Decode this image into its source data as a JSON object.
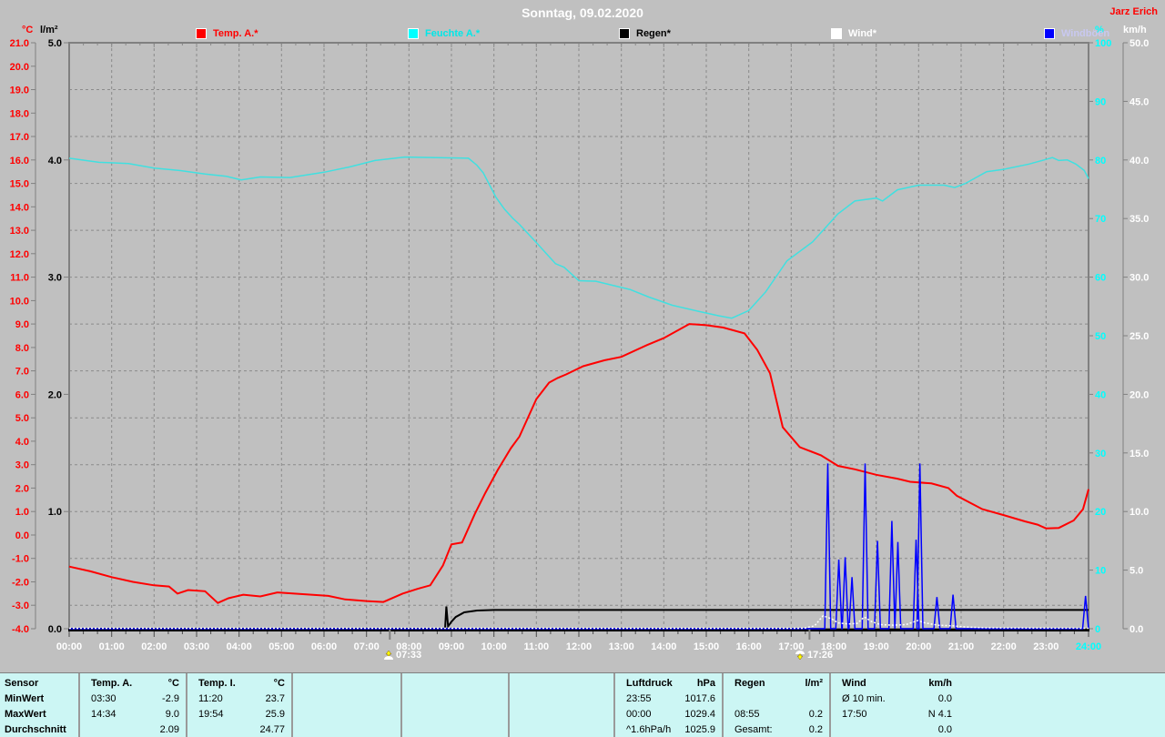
{
  "window": {
    "title": "Sonntag, 09.02.2020",
    "author": "Jarz Erich"
  },
  "axis_headers": {
    "temp": "°C",
    "rain": "l/m²",
    "humidity": "%",
    "wind": "km/h"
  },
  "legend": [
    {
      "label": "Temp. A.*",
      "swatch": "#ff0000",
      "text_color": "#ff0000"
    },
    {
      "label": "Feuchte A.*",
      "swatch": "#00ffff",
      "text_color": "#00e8e8"
    },
    {
      "label": "Regen*",
      "swatch": "#000000",
      "text_color": "#000000"
    },
    {
      "label": "Wind*",
      "swatch": "#ffffff",
      "text_color": "#ffffff"
    },
    {
      "label": "Windböen",
      "swatch": "#0000ff",
      "text_color": "#c8c8f0"
    }
  ],
  "markers": {
    "sunrise_label": "07:33",
    "sunrise_hour": 7.55,
    "sunset_label": "17:26",
    "sunset_hour": 17.43
  },
  "chart_data": {
    "type": "line",
    "title": "Sonntag, 09.02.2020",
    "x_axis": {
      "range_hours": [
        0,
        24
      ],
      "tick_labels": [
        "00:00",
        "01:00",
        "02:00",
        "03:00",
        "04:00",
        "05:00",
        "06:00",
        "07:00",
        "08:00",
        "09:00",
        "10:00",
        "11:00",
        "12:00",
        "13:00",
        "14:00",
        "15:00",
        "16:00",
        "17:00",
        "18:00",
        "19:00",
        "20:00",
        "21:00",
        "22:00",
        "23:00",
        "24:00"
      ],
      "label_color": "#ffffff",
      "last_label_color": "#00ffff"
    },
    "y_axes": [
      {
        "id": "temp",
        "unit": "°C",
        "side": "left",
        "min": -4,
        "max": 21,
        "step": 1,
        "decimals": 1,
        "color": "#ff0000"
      },
      {
        "id": "rain",
        "unit": "l/m²",
        "side": "left",
        "min": 0,
        "max": 5,
        "step": 1,
        "decimals": 1,
        "color": "#000000"
      },
      {
        "id": "humidity",
        "unit": "%",
        "side": "right",
        "min": 0,
        "max": 100,
        "step": 10,
        "decimals": 0,
        "color": "#00ffff"
      },
      {
        "id": "wind",
        "unit": "km/h",
        "side": "right",
        "min": 0,
        "max": 50,
        "step": 5,
        "decimals": 1,
        "color": "#ffffff"
      }
    ],
    "grid": {
      "color": "#8a8a8a",
      "style": "dashed",
      "x_every_hours": 1,
      "y_divisions": 12.5
    },
    "series": [
      {
        "name": "Feuchte A.*",
        "axis": "humidity",
        "color": "#40e0e0",
        "width": 1.5,
        "points": [
          [
            0,
            80.3
          ],
          [
            0.7,
            79.6
          ],
          [
            1.4,
            79.4
          ],
          [
            2,
            78.6
          ],
          [
            2.6,
            78.2
          ],
          [
            3.2,
            77.6
          ],
          [
            3.7,
            77.2
          ],
          [
            4.05,
            76.6
          ],
          [
            4.5,
            77.1
          ],
          [
            5.2,
            77
          ],
          [
            6,
            77.9
          ],
          [
            6.6,
            78.8
          ],
          [
            7.2,
            79.9
          ],
          [
            7.9,
            80.5
          ],
          [
            9.4,
            80.3
          ],
          [
            9.6,
            79.1
          ],
          [
            9.75,
            77.8
          ],
          [
            9.9,
            75.7
          ],
          [
            10.05,
            73.6
          ],
          [
            10.25,
            71.6
          ],
          [
            10.45,
            70
          ],
          [
            10.6,
            69
          ],
          [
            11,
            65.9
          ],
          [
            11.45,
            62.3
          ],
          [
            11.65,
            61.7
          ],
          [
            12,
            59.4
          ],
          [
            12.4,
            59.3
          ],
          [
            12.8,
            58.6
          ],
          [
            13.2,
            57.9
          ],
          [
            13.65,
            56.6
          ],
          [
            14.2,
            55.2
          ],
          [
            14.8,
            54.2
          ],
          [
            15.3,
            53.4
          ],
          [
            15.6,
            53
          ],
          [
            16,
            54.3
          ],
          [
            16.4,
            57.5
          ],
          [
            16.9,
            62.8
          ],
          [
            17.5,
            66
          ],
          [
            18.1,
            70.8
          ],
          [
            18.5,
            73
          ],
          [
            19,
            73.5
          ],
          [
            19.15,
            73
          ],
          [
            19.5,
            74.9
          ],
          [
            20,
            75.7
          ],
          [
            20.6,
            75.7
          ],
          [
            20.85,
            75.3
          ],
          [
            21.1,
            76
          ],
          [
            21.6,
            78
          ],
          [
            22,
            78.4
          ],
          [
            22.6,
            79.3
          ],
          [
            23,
            80.1
          ],
          [
            23.15,
            80.4
          ],
          [
            23.3,
            79.9
          ],
          [
            23.5,
            80
          ],
          [
            23.7,
            79.3
          ],
          [
            23.9,
            78.2
          ],
          [
            24,
            76.8
          ]
        ]
      },
      {
        "name": "Temp. A.*",
        "axis": "temp",
        "color": "#ff0000",
        "width": 2,
        "points": [
          [
            0,
            -1.35
          ],
          [
            0.5,
            -1.55
          ],
          [
            1,
            -1.8
          ],
          [
            1.5,
            -2
          ],
          [
            2,
            -2.15
          ],
          [
            2.35,
            -2.2
          ],
          [
            2.55,
            -2.5
          ],
          [
            2.8,
            -2.35
          ],
          [
            3.2,
            -2.4
          ],
          [
            3.5,
            -2.9
          ],
          [
            3.75,
            -2.7
          ],
          [
            4.1,
            -2.55
          ],
          [
            4.5,
            -2.62
          ],
          [
            4.9,
            -2.45
          ],
          [
            5.3,
            -2.5
          ],
          [
            5.7,
            -2.55
          ],
          [
            6.1,
            -2.6
          ],
          [
            6.5,
            -2.75
          ],
          [
            7,
            -2.82
          ],
          [
            7.4,
            -2.86
          ],
          [
            7.85,
            -2.5
          ],
          [
            8.2,
            -2.3
          ],
          [
            8.5,
            -2.15
          ],
          [
            8.8,
            -1.3
          ],
          [
            9,
            -0.4
          ],
          [
            9.25,
            -0.32
          ],
          [
            9.55,
            0.9
          ],
          [
            9.8,
            1.8
          ],
          [
            10.1,
            2.8
          ],
          [
            10.4,
            3.7
          ],
          [
            10.6,
            4.2
          ],
          [
            11,
            5.8
          ],
          [
            11.3,
            6.5
          ],
          [
            11.5,
            6.7
          ],
          [
            11.7,
            6.85
          ],
          [
            12.1,
            7.2
          ],
          [
            12.6,
            7.45
          ],
          [
            13,
            7.6
          ],
          [
            13.6,
            8.1
          ],
          [
            14,
            8.4
          ],
          [
            14.6,
            9
          ],
          [
            15,
            8.95
          ],
          [
            15.4,
            8.85
          ],
          [
            15.9,
            8.6
          ],
          [
            16.2,
            7.9
          ],
          [
            16.5,
            6.9
          ],
          [
            16.8,
            4.6
          ],
          [
            17.2,
            3.75
          ],
          [
            17.7,
            3.4
          ],
          [
            18.1,
            2.95
          ],
          [
            18.5,
            2.8
          ],
          [
            19,
            2.57
          ],
          [
            19.5,
            2.4
          ],
          [
            19.8,
            2.27
          ],
          [
            20.3,
            2.2
          ],
          [
            20.7,
            2
          ],
          [
            20.9,
            1.67
          ],
          [
            21.5,
            1.1
          ],
          [
            22,
            0.85
          ],
          [
            22.5,
            0.58
          ],
          [
            22.8,
            0.44
          ],
          [
            23,
            0.28
          ],
          [
            23.3,
            0.3
          ],
          [
            23.65,
            0.62
          ],
          [
            23.87,
            1.1
          ],
          [
            24,
            1.95
          ]
        ]
      },
      {
        "name": "Regen*",
        "axis": "rain",
        "color": "#000000",
        "width": 2,
        "points": [
          [
            0,
            0
          ],
          [
            8.85,
            0
          ],
          [
            8.88,
            0.19
          ],
          [
            8.92,
            0.02
          ],
          [
            9,
            0.06
          ],
          [
            9.1,
            0.1
          ],
          [
            9.3,
            0.14
          ],
          [
            9.6,
            0.155
          ],
          [
            10,
            0.16
          ],
          [
            24,
            0.16
          ]
        ]
      },
      {
        "name": "Windböen",
        "axis": "wind",
        "color": "#0000ff",
        "width": 1.5,
        "baseline": 0,
        "spike_halfwidth_hours": 0.07,
        "spikes": [
          [
            17.86,
            14.1
          ],
          [
            18.12,
            5.9
          ],
          [
            18.27,
            6.1
          ],
          [
            18.43,
            4.4
          ],
          [
            18.74,
            14.1
          ],
          [
            19.03,
            7.5
          ],
          [
            19.37,
            9.2
          ],
          [
            19.51,
            7.4
          ],
          [
            19.94,
            7.6
          ],
          [
            20.03,
            14.1
          ],
          [
            20.43,
            2.7
          ],
          [
            20.81,
            2.9
          ],
          [
            23.93,
            2.8
          ]
        ]
      },
      {
        "name": "Wind*",
        "axis": "wind",
        "color": "#ffffff",
        "width": 1.5,
        "dash": "2 2",
        "points": [
          [
            0,
            0.04
          ],
          [
            17.3,
            0.04
          ],
          [
            17.55,
            0.25
          ],
          [
            17.75,
            1.1
          ],
          [
            17.95,
            0.85
          ],
          [
            18.1,
            0.5
          ],
          [
            18.35,
            0.4
          ],
          [
            18.55,
            0.45
          ],
          [
            18.72,
            1
          ],
          [
            18.9,
            0.6
          ],
          [
            19.1,
            0.35
          ],
          [
            19.4,
            0.3
          ],
          [
            19.7,
            0.35
          ],
          [
            19.98,
            0.7
          ],
          [
            20.15,
            0.5
          ],
          [
            20.45,
            0.3
          ],
          [
            20.8,
            0.25
          ],
          [
            21.1,
            0.15
          ],
          [
            21.6,
            0.08
          ],
          [
            24,
            0.04
          ]
        ]
      }
    ]
  },
  "stats": {
    "row_labels": [
      "Sensor",
      "MinWert",
      "MaxWert",
      "Durchschnitt"
    ],
    "columns": [
      {
        "name": "Temp. A.",
        "unit": "°C",
        "rows": [
          [
            "03:30",
            "-2.9"
          ],
          [
            "14:34",
            "9.0"
          ],
          [
            "",
            "2.09"
          ]
        ]
      },
      {
        "name": "Temp. I.",
        "unit": "°C",
        "rows": [
          [
            "11:20",
            "23.7"
          ],
          [
            "19:54",
            "25.9"
          ],
          [
            "",
            "24.77"
          ]
        ]
      },
      {
        "name": "",
        "unit": "",
        "rows": [
          [
            "",
            ""
          ],
          [
            "",
            ""
          ],
          [
            "",
            ""
          ]
        ]
      },
      {
        "name": "",
        "unit": "",
        "rows": [
          [
            "",
            ""
          ],
          [
            "",
            ""
          ],
          [
            "",
            ""
          ]
        ]
      },
      {
        "name": "",
        "unit": "",
        "rows": [
          [
            "",
            ""
          ],
          [
            "",
            ""
          ],
          [
            "",
            ""
          ]
        ]
      },
      {
        "name": "Luftdruck",
        "unit": "hPa",
        "rows": [
          [
            "23:55",
            "1017.6"
          ],
          [
            "00:00",
            "1029.4"
          ],
          [
            "^1.6hPa/h",
            "1025.9"
          ]
        ]
      },
      {
        "name": "Regen",
        "unit": "l/m²",
        "rows": [
          [
            "",
            ""
          ],
          [
            "08:55",
            "0.2"
          ],
          [
            "Gesamt:",
            "0.2"
          ]
        ]
      },
      {
        "name": "Wind",
        "unit": "km/h",
        "rows": [
          [
            "Ø 10 min.",
            "0.0"
          ],
          [
            "17:50",
            "N 4.1"
          ],
          [
            "",
            "0.0"
          ]
        ]
      }
    ]
  }
}
